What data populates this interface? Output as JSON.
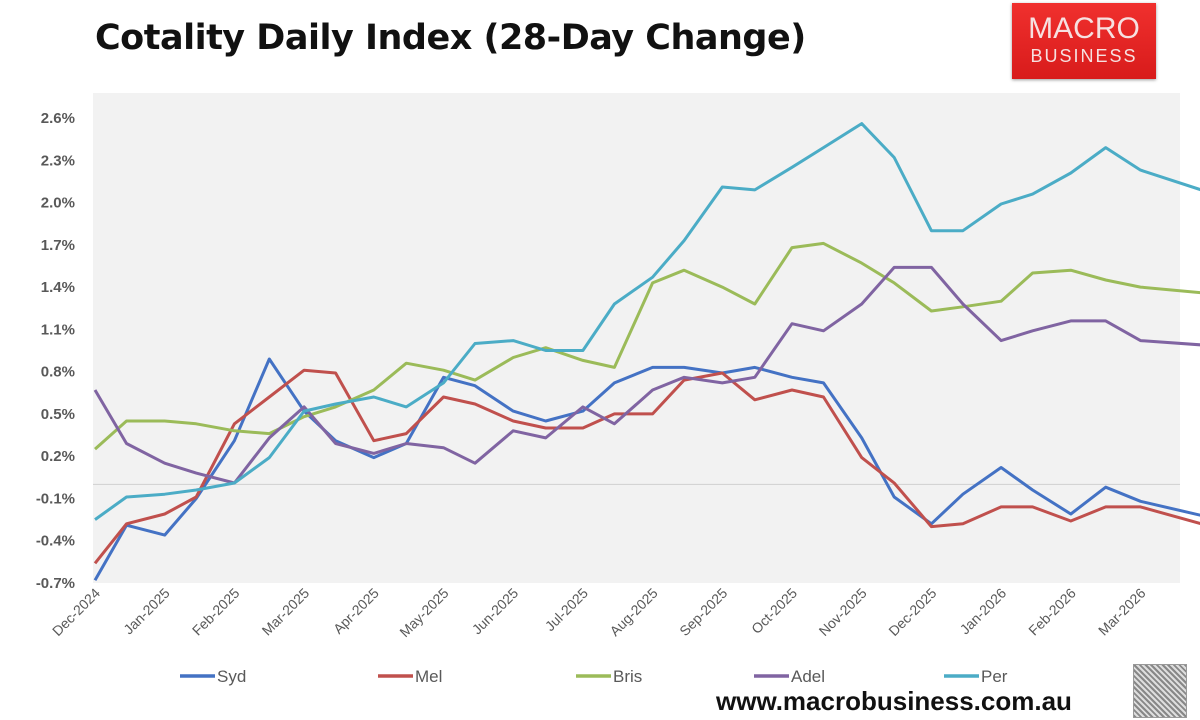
{
  "logo_text": "MACRO BUSINESS",
  "website": "www.macrobusiness.com.au",
  "chart_data": {
    "type": "line",
    "title": "Cotality Daily Index (28-Day Change)",
    "xlabel": "",
    "ylabel": "",
    "ylim": [
      -0.7,
      2.6
    ],
    "yticks": [
      "2.6%",
      "2.3%",
      "2.0%",
      "1.7%",
      "1.4%",
      "1.1%",
      "0.8%",
      "0.5%",
      "0.2%",
      "-0.1%",
      "-0.4%",
      "-0.7%"
    ],
    "ytick_values": [
      2.6,
      2.3,
      2.0,
      1.7,
      1.4,
      1.1,
      0.8,
      0.5,
      0.2,
      -0.1,
      -0.4,
      -0.7
    ],
    "xticks": [
      "Dec-2024",
      "Jan-2025",
      "Feb-2025",
      "Mar-2025",
      "Apr-2025",
      "May-2025",
      "Jun-2025",
      "Jul-2025",
      "Aug-2025",
      "Sep-2025",
      "Oct-2025",
      "Nov-2025",
      "Dec-2025",
      "Jan-2026",
      "Feb-2026",
      "Mar-2026"
    ],
    "grid": false,
    "zero_line": true,
    "legend_position": "bottom",
    "x": [
      "2024-12-01",
      "2024-12-15",
      "2025-01-01",
      "2025-01-15",
      "2025-02-01",
      "2025-02-15",
      "2025-03-01",
      "2025-03-15",
      "2025-04-01",
      "2025-04-15",
      "2025-05-01",
      "2025-05-15",
      "2025-06-01",
      "2025-06-15",
      "2025-07-01",
      "2025-07-15",
      "2025-08-01",
      "2025-08-15",
      "2025-09-01",
      "2025-09-15",
      "2025-10-01",
      "2025-10-15",
      "2025-11-01",
      "2025-11-15",
      "2025-12-01",
      "2025-12-15",
      "2026-01-01",
      "2026-01-15",
      "2026-02-01",
      "2026-02-15",
      "2026-03-01",
      "2026-03-28"
    ],
    "series": [
      {
        "name": "Syd",
        "color": "#4472c4",
        "values": [
          -0.68,
          -0.29,
          -0.36,
          -0.1,
          0.31,
          0.89,
          0.52,
          0.31,
          0.19,
          0.29,
          0.76,
          0.7,
          0.52,
          0.45,
          0.52,
          0.72,
          0.83,
          0.83,
          0.79,
          0.83,
          0.76,
          0.72,
          0.33,
          -0.09,
          -0.28,
          -0.07,
          0.12,
          -0.04,
          -0.21,
          -0.02,
          -0.12,
          -0.22
        ]
      },
      {
        "name": "Mel",
        "color": "#c0504d",
        "values": [
          -0.56,
          -0.28,
          -0.21,
          -0.09,
          0.43,
          0.62,
          0.81,
          0.79,
          0.31,
          0.36,
          0.62,
          0.57,
          0.45,
          0.4,
          0.4,
          0.5,
          0.5,
          0.74,
          0.79,
          0.6,
          0.67,
          0.62,
          0.19,
          0.01,
          -0.3,
          -0.28,
          -0.16,
          -0.16,
          -0.26,
          -0.16,
          -0.16,
          -0.28
        ]
      },
      {
        "name": "Bris",
        "color": "#9bbb59",
        "values": [
          0.25,
          0.45,
          0.45,
          0.43,
          0.38,
          0.36,
          0.48,
          0.55,
          0.67,
          0.86,
          0.81,
          0.74,
          0.9,
          0.97,
          0.88,
          0.83,
          1.43,
          1.52,
          1.4,
          1.28,
          1.68,
          1.71,
          1.57,
          1.43,
          1.23,
          1.26,
          1.3,
          1.5,
          1.52,
          1.45,
          1.4,
          1.36
        ]
      },
      {
        "name": "Adel",
        "color": "#8064a2",
        "values": [
          0.67,
          0.29,
          0.15,
          0.08,
          0.01,
          0.33,
          0.55,
          0.29,
          0.22,
          0.29,
          0.26,
          0.15,
          0.38,
          0.33,
          0.55,
          0.43,
          0.67,
          0.76,
          0.72,
          0.76,
          1.14,
          1.09,
          1.28,
          1.54,
          1.54,
          1.28,
          1.02,
          1.09,
          1.16,
          1.16,
          1.02,
          0.99
        ]
      },
      {
        "name": "Per",
        "color": "#4bacc6",
        "values": [
          -0.25,
          -0.09,
          -0.07,
          -0.04,
          0.01,
          0.19,
          0.52,
          0.57,
          0.62,
          0.55,
          0.72,
          1.0,
          1.02,
          0.95,
          0.95,
          1.28,
          1.47,
          1.73,
          2.11,
          2.09,
          2.25,
          2.39,
          2.56,
          2.32,
          1.8,
          1.8,
          1.99,
          2.06,
          2.21,
          2.39,
          2.23,
          2.09
        ]
      }
    ]
  }
}
